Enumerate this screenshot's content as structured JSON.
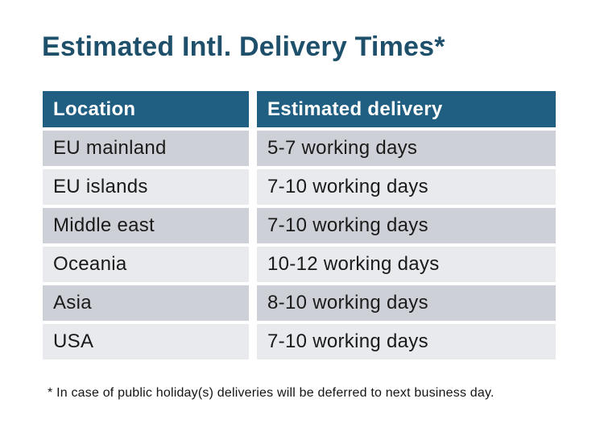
{
  "title": "Estimated Intl. Delivery Times*",
  "table": {
    "headers": [
      "Location",
      "Estimated delivery"
    ],
    "rows": [
      {
        "location": "EU mainland",
        "delivery": "5-7 working days"
      },
      {
        "location": "EU islands",
        "delivery": "7-10 working days"
      },
      {
        "location": "Middle east",
        "delivery": "7-10 working days"
      },
      {
        "location": "Oceania",
        "delivery": "10-12 working days"
      },
      {
        "location": "Asia",
        "delivery": "8-10 working days"
      },
      {
        "location": "USA",
        "delivery": "7-10 working days"
      }
    ]
  },
  "footnote": "* In case of public holiday(s) deliveries will be deferred to next business day.",
  "colors": {
    "title_text": "#1F506B",
    "header_bg": "#215F82",
    "header_text": "#FFFFFF",
    "row_dark": "#CDD1D7",
    "row_light": "#E8EAED",
    "body_text": "#1A1A1A",
    "background": "#FFFFFF"
  }
}
